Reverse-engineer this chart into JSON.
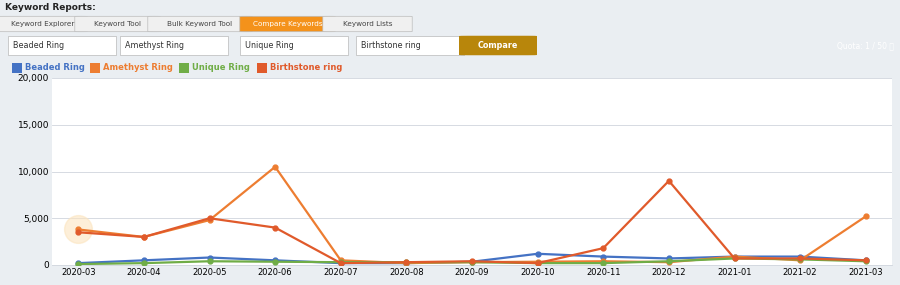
{
  "months": [
    "2020-03",
    "2020-04",
    "2020-05",
    "2020-06",
    "2020-07",
    "2020-08",
    "2020-09",
    "2020-10",
    "2020-11",
    "2020-12",
    "2021-01",
    "2021-02",
    "2021-03"
  ],
  "beaded_ring": [
    200,
    500,
    800,
    500,
    200,
    200,
    350,
    1200,
    900,
    700,
    900,
    900,
    500
  ],
  "amethyst_ring": [
    3800,
    3000,
    4800,
    10500,
    500,
    200,
    300,
    350,
    400,
    300,
    900,
    500,
    5200
  ],
  "unique_ring": [
    100,
    200,
    400,
    350,
    300,
    300,
    300,
    200,
    200,
    400,
    700,
    600,
    400
  ],
  "birthstone_ring": [
    3500,
    3000,
    5000,
    4000,
    200,
    300,
    400,
    200,
    1800,
    9000,
    700,
    700,
    500
  ],
  "colors": {
    "beaded_ring": "#4472c4",
    "amethyst_ring": "#ed7d31",
    "unique_ring": "#70ad47",
    "birthstone_ring": "#e05a2b"
  },
  "legend_labels": [
    "Beaded Ring",
    "Amethyst Ring",
    "Unique Ring",
    "Birthstone ring"
  ],
  "legend_keys": [
    "beaded_ring",
    "amethyst_ring",
    "unique_ring",
    "birthstone_ring"
  ],
  "ylim": [
    0,
    20000
  ],
  "yticks": [
    0,
    5000,
    10000,
    15000,
    20000
  ],
  "bg_light": "#eaeef2",
  "bg_white": "#ffffff",
  "bg_chart": "#f5f7fa",
  "grid_color": "#d0d5dd",
  "blue_bar": "#1565a8",
  "marker": "o",
  "marker_size": 3.5,
  "line_width": 1.6,
  "tab_labels": [
    "Keyword Explorer",
    "Keyword Tool",
    "Bulk Keyword Tool",
    "Compare Keywords",
    "Keyword Lists"
  ],
  "tab_active": 3,
  "tab_active_color": "#f4921b",
  "tab_inactive_color": "#f0f0f0",
  "input_labels": [
    "Beaded Ring",
    "Amethyst Ring",
    "Unique Ring",
    "Birthstone ring"
  ],
  "compare_btn_color": "#b8860b",
  "quota_text": "Quota: 1 / 50 ⓘ"
}
